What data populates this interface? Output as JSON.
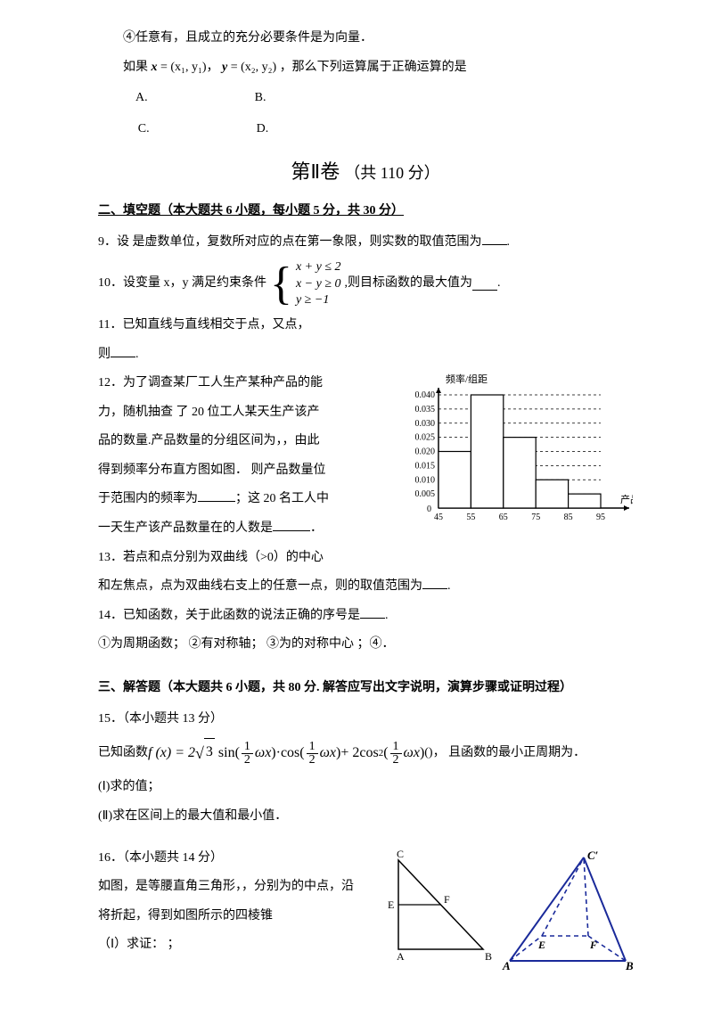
{
  "q8": {
    "cond4": "④任意有，且成立的充分必要条件是为向量．",
    "stem": "如果 ",
    "xdef_pre": "x",
    "xdef": " = (x₁,  y₁)，",
    "ydef_pre": "y",
    "ydef": " = (x₂,  y₂)",
    "stem_tail": " ，那么下列运算属于正确运算的是",
    "A": "A.",
    "B": "B.",
    "C": "C.",
    "D": "D."
  },
  "part2": {
    "title_l": "第Ⅱ卷",
    "title_r": "（共 110 分）"
  },
  "sec2": {
    "heading": "二、填空题（本大题共 6 小题，每小题 5 分，共 30 分）"
  },
  "q9": {
    "text": "9．设 是虚数单位，复数所对应的点在第一象限，则实数的取值范围为",
    "tail": "."
  },
  "q10": {
    "pre": "10．设变量 x，y 满足约束条件",
    "r1": "x + y ≤ 2",
    "r2": "x − y ≥ 0",
    "r3": "y ≥ −1",
    "post": ",则目标函数的最大值为",
    "tail": "."
  },
  "q11": {
    "l1": "11．已知直线与直线相交于点，又点，",
    "l2": "则",
    "tail": "."
  },
  "q12": {
    "l1": "12．为了调查某厂工人生产某种产品的能",
    "l2": "力，随机抽查   了 20 位工人某天生产该产",
    "l3": "品的数量.产品数量的分组区间为，，由此",
    "l4": "得到频率分布直方图如图．  则产品数量位",
    "l5a": "于范围内的频率为",
    "l5b": "；这 20 名工人中",
    "l6a": "一天生产该产品数量在的人数是",
    "l6b": "．",
    "chart": {
      "type": "histogram",
      "ylabel": "频率/组距",
      "xlabel": "产品数量",
      "yticks": [
        0.005,
        0.01,
        0.015,
        0.02,
        0.025,
        0.03,
        0.035,
        0.04
      ],
      "xticks": [
        45,
        55,
        65,
        75,
        85,
        95
      ],
      "bars": [
        {
          "x0": 45,
          "x1": 55,
          "h": 0.02
        },
        {
          "x0": 55,
          "x1": 65,
          "h": 0.04
        },
        {
          "x0": 65,
          "x1": 75,
          "h": 0.025
        },
        {
          "x0": 75,
          "x1": 85,
          "h": 0.01
        },
        {
          "x0": 85,
          "x1": 95,
          "h": 0.005
        }
      ],
      "axis_color": "#000000",
      "grid_dash": "3,3",
      "bar_fill": "#ffffff",
      "bar_stroke": "#000000",
      "font_size": 11
    }
  },
  "q13": {
    "l1": "13．若点和点分别为双曲线（>0）的中心",
    "l2": "和左焦点，点为双曲线右支上的任意一点，则的取值范围为",
    "tail": "."
  },
  "q14": {
    "l1": "14．已知函数，关于此函数的说法正确的序号是",
    "tail": ".",
    "l2": "①为周期函数；  ②有对称轴；   ③为的对称中心  ；④．"
  },
  "sec3": {
    "heading": "三、解答题（本大题共 6 小题，共 80 分. 解答应写出文字说明，演算步骤或证明过程）"
  },
  "q15": {
    "head": "15．（本小题共 13 分）",
    "pre": "已知函数 ",
    "formula": {
      "lhs": "f (x) = 2",
      "sqrt": "3",
      "sin": "sin(",
      "half": "1",
      "half_d": "2",
      "omega": "ωx",
      "rp": ")",
      "dot": "·",
      "cos": "cos(",
      "plus": " + 2",
      "cos2": "cos",
      "sq": "2",
      "lp": "("
    },
    "post": " ()，  且函数的最小正周期为．",
    "p1": "(Ⅰ)求的值；",
    "p2": "(Ⅱ)求在区间上的最大值和最小值．"
  },
  "q16": {
    "head": "16．（本小题共 14 分）",
    "l1": "如图，是等腰直角三角形，，分别为的中点，沿",
    "l2": "将折起，得到如图所示的四棱锥",
    "l3": "（Ⅰ）求证：  ；",
    "tri": {
      "A": "A",
      "B": "B",
      "C": "C",
      "E": "E",
      "F": "F",
      "stroke": "#000000"
    },
    "pyr": {
      "A": "A",
      "B": "B",
      "Cp": "C′",
      "E": "E",
      "F": "F",
      "stroke": "#1a2a9a",
      "dash": "5,4"
    }
  },
  "colors": {
    "text": "#000000",
    "bg": "#ffffff"
  }
}
